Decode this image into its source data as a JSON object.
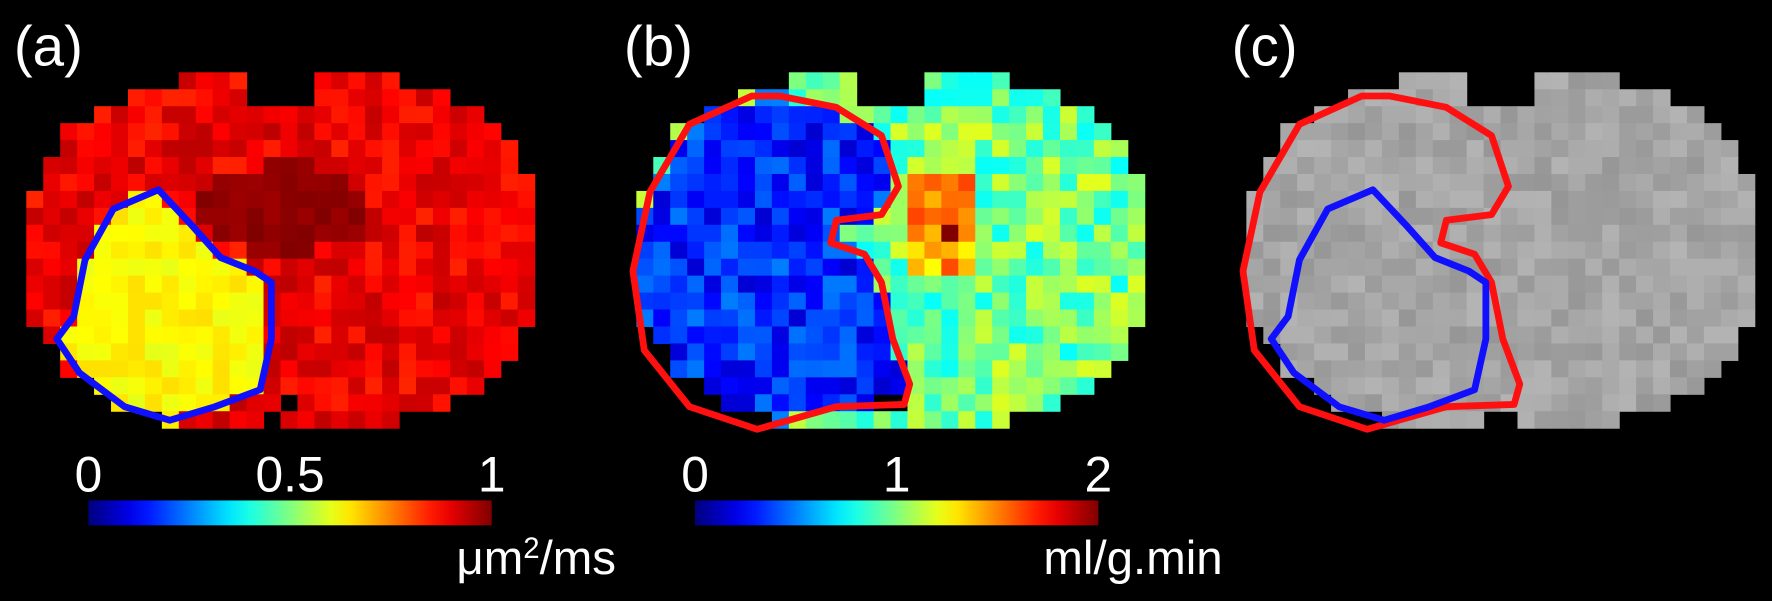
{
  "panels": [
    {
      "label": "(a)",
      "colorbar": {
        "lim": [
          0,
          1
        ],
        "ticks": [
          0,
          0.5,
          1
        ],
        "unit": {
          "base": "μm",
          "superscript": "2",
          "suffix": "/ms"
        }
      }
    },
    {
      "label": "(b)",
      "colorbar": {
        "lim": [
          0,
          2
        ],
        "ticks": [
          0,
          1,
          2
        ],
        "unit": {
          "base": "ml/g.min"
        }
      }
    },
    {
      "label": "(c)"
    }
  ]
}
